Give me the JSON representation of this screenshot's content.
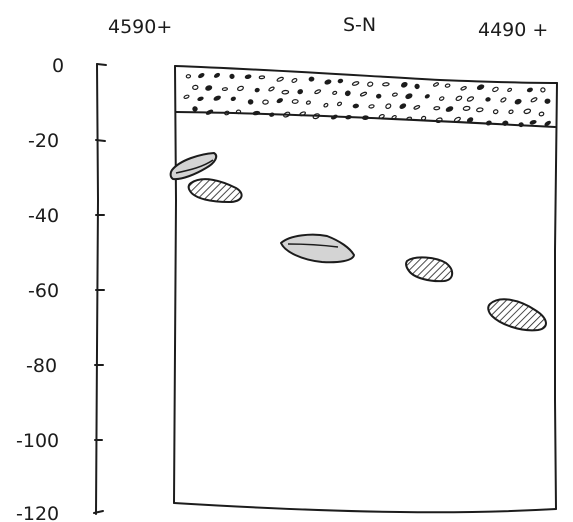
{
  "header": {
    "left_label": "4590+",
    "center_label": "S-N",
    "right_label": "4490 +"
  },
  "depth_axis": {
    "ticks": [
      {
        "value": 0,
        "label": "0"
      },
      {
        "value": -20,
        "label": "-20"
      },
      {
        "value": -40,
        "label": "-40"
      },
      {
        "value": -60,
        "label": "-60"
      },
      {
        "value": -80,
        "label": "-80"
      },
      {
        "value": -100,
        "label": "-100"
      },
      {
        "value": -120,
        "label": "-120"
      }
    ]
  },
  "colors": {
    "ink": "#1c1c1c",
    "light_stone": "#d4d4d4",
    "dark_stone": "#8a8a8a",
    "paper": "#ffffff"
  }
}
